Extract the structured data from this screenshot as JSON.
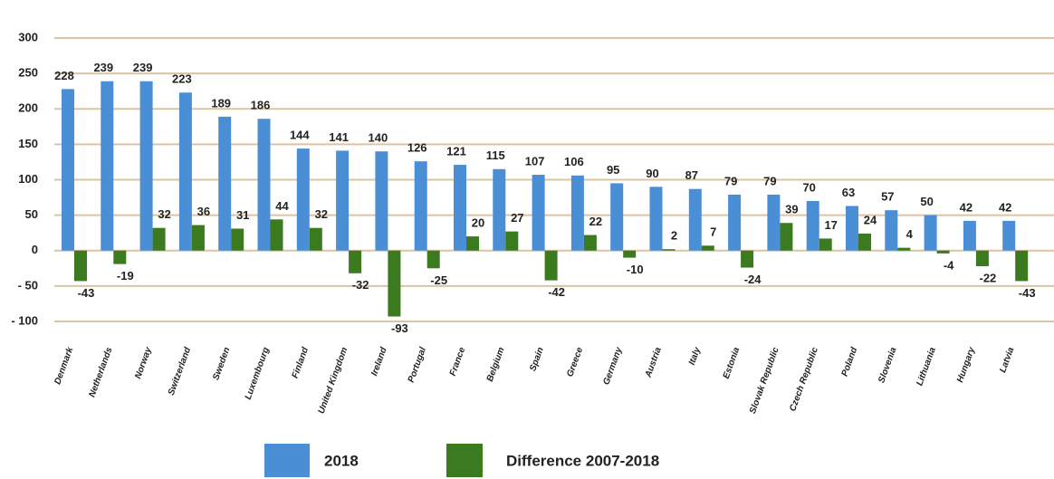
{
  "chart_data": {
    "type": "bar",
    "categories": [
      "Denmark",
      "Netherlands",
      "Norway",
      "Switzerland",
      "Sweden",
      "Luxembourg",
      "Finland",
      "United Kingdom",
      "Ireland",
      "Portugal",
      "France",
      "Belgium",
      "Spain",
      "Greece",
      "Germany",
      "Austria",
      "Italy",
      "Estonia",
      "Slovak Republic",
      "Czech Republic",
      "Poland",
      "Slovenia",
      "Lithuania",
      "Hungary",
      "Latvia"
    ],
    "series": [
      {
        "name": "2018",
        "color": "#4a8fd6",
        "values": [
          228,
          239,
          239,
          223,
          189,
          186,
          144,
          141,
          140,
          126,
          121,
          115,
          107,
          106,
          95,
          90,
          87,
          79,
          79,
          70,
          63,
          57,
          50,
          42,
          42
        ]
      },
      {
        "name": "Difference 2007-2018",
        "color": "#3b7a1f",
        "values": [
          -43,
          -19,
          32,
          36,
          31,
          44,
          32,
          -32,
          -93,
          -25,
          20,
          27,
          -42,
          22,
          -10,
          2,
          7,
          -24,
          39,
          17,
          24,
          4,
          -4,
          -22,
          -43
        ]
      }
    ],
    "ylim": [
      -100,
      300
    ],
    "yticks": [
      {
        "value": -100,
        "label": "- 100"
      },
      {
        "value": -50,
        "label": "- 50"
      },
      0,
      50,
      100,
      150,
      200,
      250,
      300
    ],
    "grid": true,
    "legend": "bottom"
  }
}
